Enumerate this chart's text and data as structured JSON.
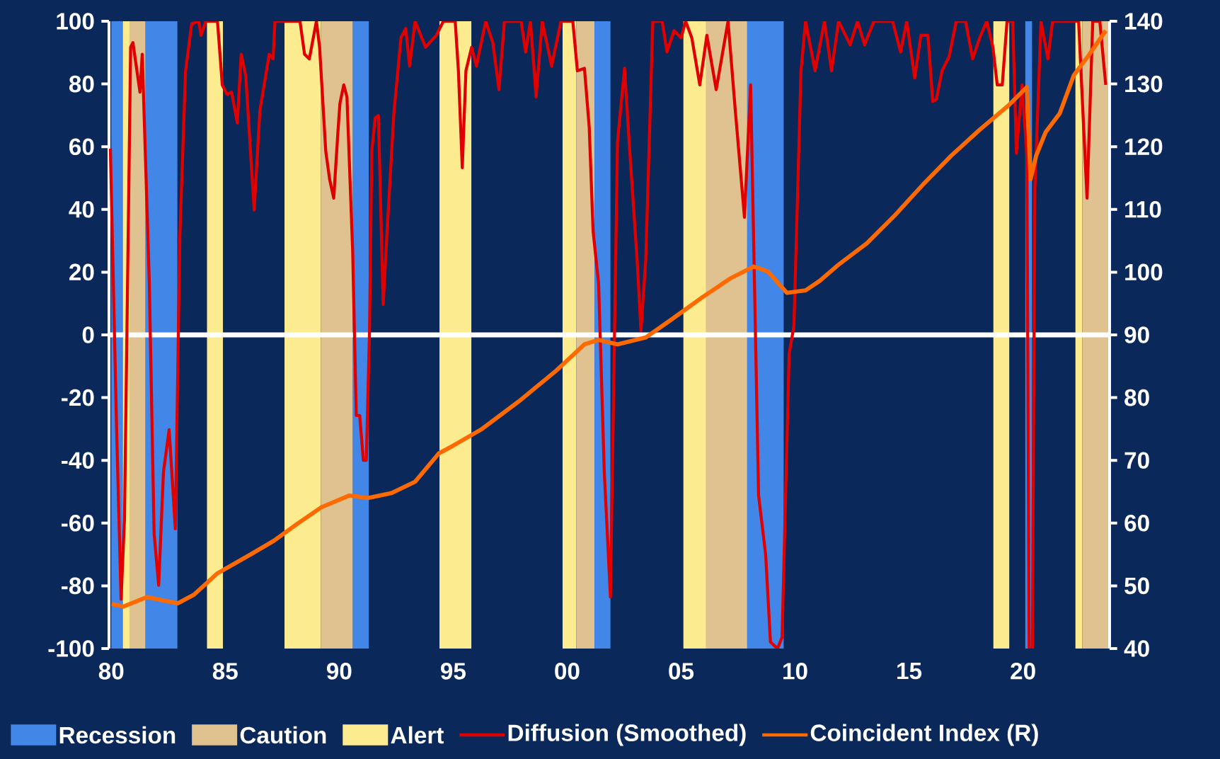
{
  "chart_data": {
    "type": "line",
    "xlim": [
      1979.9,
      2023.8
    ],
    "xticks": [
      {
        "value": 1980,
        "label": "80"
      },
      {
        "value": 1985,
        "label": "85"
      },
      {
        "value": 1990,
        "label": "90"
      },
      {
        "value": 1995,
        "label": "95"
      },
      {
        "value": 2000,
        "label": "00"
      },
      {
        "value": 2005,
        "label": "05"
      },
      {
        "value": 2010,
        "label": "10"
      },
      {
        "value": 2015,
        "label": "15"
      },
      {
        "value": 2020,
        "label": "20"
      }
    ],
    "ylim": [
      -100,
      100
    ],
    "yticks": [
      -100,
      -80,
      -60,
      -40,
      -20,
      0,
      20,
      40,
      60,
      80,
      100
    ],
    "y2lim": [
      40,
      140
    ],
    "y2ticks": [
      40,
      50,
      60,
      70,
      80,
      90,
      100,
      110,
      120,
      130,
      140
    ],
    "legend": "bottom",
    "bands": [
      {
        "axis": "x",
        "from": 1981.5,
        "to": 1982.9,
        "label": "Recession",
        "color": "#4287e8"
      },
      {
        "axis": "x",
        "from": 1980.8,
        "to": 1981.5,
        "label": "Caution",
        "color": "#dfc28f"
      },
      {
        "axis": "x",
        "from": 1980.5,
        "to": 1980.8,
        "label": "Alert",
        "color": "#fdeb90"
      },
      {
        "axis": "x",
        "from": 1980.0,
        "to": 1980.5,
        "color": "#4287e8"
      },
      {
        "axis": "x",
        "from": 1984.2,
        "to": 1984.9,
        "color": "#fdeb90"
      },
      {
        "axis": "x",
        "from": 1987.6,
        "to": 1989.2,
        "color": "#fdeb90"
      },
      {
        "axis": "x",
        "from": 1989.2,
        "to": 1990.6,
        "color": "#dfc28f"
      },
      {
        "axis": "x",
        "from": 1990.6,
        "to": 1991.3,
        "color": "#4287e8"
      },
      {
        "axis": "x",
        "from": 1994.4,
        "to": 1995.8,
        "color": "#fdeb90"
      },
      {
        "axis": "x",
        "from": 1999.8,
        "to": 2000.4,
        "color": "#fdeb90"
      },
      {
        "axis": "x",
        "from": 2000.4,
        "to": 2001.2,
        "color": "#dfc28f"
      },
      {
        "axis": "x",
        "from": 2001.2,
        "to": 2001.9,
        "color": "#4287e8"
      },
      {
        "axis": "x",
        "from": 2005.1,
        "to": 2006.1,
        "color": "#fdeb90"
      },
      {
        "axis": "x",
        "from": 2006.1,
        "to": 2007.9,
        "color": "#dfc28f"
      },
      {
        "axis": "x",
        "from": 2007.9,
        "to": 2009.5,
        "color": "#4287e8"
      },
      {
        "axis": "x",
        "from": 2018.7,
        "to": 2019.4,
        "color": "#fdeb90"
      },
      {
        "axis": "x",
        "from": 2020.1,
        "to": 2020.4,
        "color": "#4287e8"
      },
      {
        "axis": "x",
        "from": 2022.3,
        "to": 2022.6,
        "color": "#fdeb90"
      },
      {
        "axis": "x",
        "from": 2022.6,
        "to": 2023.8,
        "color": "#dfc28f"
      }
    ],
    "ref_lines": [
      {
        "axis": "y",
        "value": 0,
        "color": "#ffffff"
      }
    ],
    "series": [
      {
        "name": "Diffusion (Smoothed)",
        "color": "#e00000",
        "x": [
          1979.96,
          1980.23,
          1980.43,
          1980.58,
          1980.85,
          1980.95,
          1981.26,
          1981.36,
          1981.67,
          1981.88,
          1982.08,
          1982.29,
          1982.54,
          1982.81,
          1983.01,
          1983.26,
          1983.53,
          1983.84,
          1983.94,
          1984.15,
          1984.66,
          1984.77,
          1984.87,
          1985.08,
          1985.28,
          1985.53,
          1985.7,
          1985.9,
          1986.27,
          1986.52,
          1986.93,
          1987.1,
          1987.18,
          1988.28,
          1988.48,
          1988.69,
          1989.0,
          1989.14,
          1989.41,
          1989.58,
          1989.76,
          1989.93,
          1990.03,
          1990.2,
          1990.34,
          1990.59,
          1990.75,
          1990.9,
          1991.06,
          1991.19,
          1991.33,
          1991.43,
          1991.58,
          1991.72,
          1991.93,
          1992.09,
          1992.4,
          1992.71,
          1992.92,
          1993.09,
          1993.33,
          1993.79,
          1994.26,
          1994.57,
          1995.09,
          1995.23,
          1995.4,
          1995.56,
          1995.81,
          1996.02,
          1996.43,
          1996.74,
          1997.01,
          1997.25,
          1997.98,
          1998.18,
          1998.39,
          1998.64,
          1998.91,
          1999.32,
          1999.73,
          2000.25,
          2000.45,
          2000.76,
          2000.97,
          2001.14,
          2001.38,
          2001.63,
          2001.9,
          2002.21,
          2002.52,
          2002.72,
          2003.07,
          2003.24,
          2003.45,
          2003.76,
          2004.17,
          2004.38,
          2004.69,
          2005.0,
          2005.2,
          2005.47,
          2005.82,
          2006.13,
          2006.54,
          2007.06,
          2007.37,
          2007.78,
          2008.05,
          2008.4,
          2008.71,
          2008.92,
          2009.23,
          2009.43,
          2009.74,
          2009.95,
          2010.26,
          2010.46,
          2010.88,
          2011.29,
          2011.6,
          2011.91,
          2012.42,
          2012.74,
          2013.05,
          2013.46,
          2014.28,
          2014.63,
          2014.9,
          2015.25,
          2015.52,
          2015.83,
          2016.04,
          2016.2,
          2016.45,
          2016.76,
          2017.07,
          2017.48,
          2017.79,
          2018.1,
          2018.41,
          2018.68,
          2018.87,
          2019.09,
          2019.3,
          2019.55,
          2019.71,
          2019.96,
          2020.17,
          2020.27,
          2020.41,
          2020.52,
          2020.79,
          2021.09,
          2021.3,
          2022.44,
          2022.64,
          2022.81,
          2023.06,
          2023.37,
          2023.63
        ],
        "values": [
          59.4,
          -28.7,
          -84.3,
          -58.8,
          91.7,
          93.2,
          77.4,
          89.5,
          16.5,
          -63.3,
          -79.8,
          -43.7,
          -30.2,
          -61.8,
          31.5,
          84.2,
          99.2,
          100,
          95.5,
          100,
          100,
          89.5,
          79.7,
          76.7,
          77.4,
          67.6,
          89.5,
          82.7,
          39.8,
          71.4,
          89.5,
          88,
          100,
          100,
          89.5,
          88,
          100,
          91.7,
          58.6,
          49.6,
          43.6,
          63.1,
          73.7,
          79.7,
          75.9,
          27,
          -25.7,
          -25.7,
          -40,
          -40,
          1.4,
          58.6,
          69.2,
          69.9,
          9.7,
          31.5,
          70.7,
          94.7,
          97.7,
          85.7,
          100,
          91.7,
          95.5,
          100,
          100,
          84.2,
          53.3,
          84.2,
          91.7,
          85.7,
          100,
          93.2,
          78.2,
          100,
          100,
          90.2,
          100,
          75.9,
          100,
          85.7,
          100,
          100,
          84.2,
          85,
          66.1,
          33,
          16.5,
          -43.7,
          -83.6,
          61.6,
          85,
          61.6,
          24,
          1.4,
          24,
          100,
          100,
          90.2,
          97,
          94.7,
          100,
          94.7,
          79.7,
          95.5,
          78.2,
          100,
          72.2,
          37.5,
          79.7,
          -51.2,
          -70.1,
          -97.9,
          -100,
          -96.4,
          -6.1,
          2.9,
          84.2,
          100,
          84.2,
          100,
          84.2,
          100,
          92.5,
          100,
          92.5,
          100,
          100,
          90.2,
          100,
          81.9,
          95.5,
          95.5,
          74.4,
          75.2,
          84.2,
          88.7,
          100,
          100,
          88,
          94.7,
          100,
          91.7,
          79.7,
          79.7,
          100,
          100,
          57.9,
          79.7,
          57.1,
          -100,
          -100,
          46.6,
          100,
          88,
          100,
          100,
          69.2,
          43.6,
          100,
          100,
          79.7
        ]
      },
      {
        "name": "Coincident Index (R)",
        "color": "#ff6a00",
        "axis": "y2",
        "x": [
          1980.02,
          1980.54,
          1981.57,
          1982.91,
          1983.63,
          1984.66,
          1986.11,
          1987.14,
          1988.17,
          1989.21,
          1990.45,
          1991.27,
          1992.3,
          1993.33,
          1994.37,
          1994.98,
          1996.22,
          1997.88,
          1999.52,
          2000.76,
          2001.38,
          2002.21,
          2003.45,
          2004.48,
          2005.93,
          2007.16,
          2008.19,
          2008.81,
          2009.64,
          2010.46,
          2011.08,
          2011.91,
          2013.15,
          2014.39,
          2015.62,
          2016.86,
          2018.1,
          2019.34,
          2020.17,
          2020.33,
          2020.58,
          2020.99,
          2021.61,
          2022.23,
          2022.85,
          2023.63
        ],
        "values": [
          47.1,
          46.7,
          48.2,
          47.2,
          48.6,
          52,
          55,
          57.2,
          59.9,
          62.5,
          64.4,
          64,
          64.8,
          66.6,
          71.1,
          72.3,
          74.9,
          79.4,
          84.3,
          88.5,
          89.2,
          88.5,
          89.6,
          92.2,
          96,
          99,
          100.9,
          100.1,
          96.7,
          97.1,
          98.6,
          101.2,
          104.6,
          109.1,
          114,
          118.6,
          122.7,
          126.5,
          129.5,
          114.8,
          118.6,
          122.3,
          125.3,
          131.4,
          134.4,
          138.5
        ]
      }
    ]
  }
}
